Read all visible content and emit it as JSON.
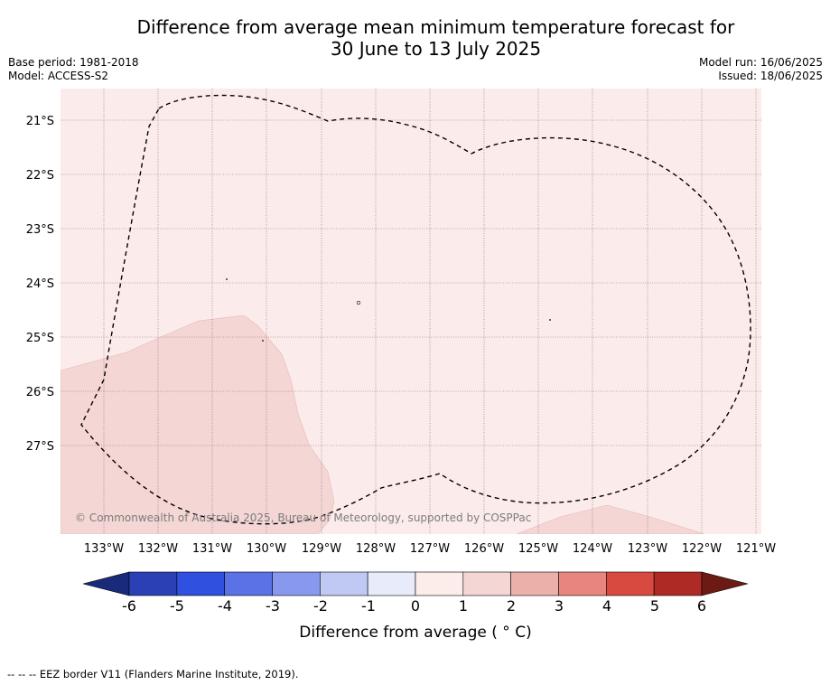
{
  "title_line1": "Difference from average mean minimum temperature forecast for",
  "title_line2": "30 June to 13 July 2025",
  "base_period": "Base period: 1981-2018",
  "model": "Model: ACCESS-S2",
  "model_run": "Model run: 16/06/2025",
  "issued": "Issued: 18/06/2025",
  "copyright": "© Commonwealth of Australia 2025, Bureau of Meteorology, supported by COSPPac",
  "lat_labels": [
    "21°S",
    "22°S",
    "23°S",
    "24°S",
    "25°S",
    "26°S",
    "27°S"
  ],
  "lon_labels": [
    "133°W",
    "132°W",
    "131°W",
    "130°W",
    "129°W",
    "128°W",
    "127°W",
    "126°W",
    "125°W",
    "124°W",
    "123°W",
    "122°W",
    "121°W"
  ],
  "colorbar": {
    "tick_labels": [
      "-6",
      "-5",
      "-4",
      "-3",
      "-2",
      "-1",
      "0",
      "1",
      "2",
      "3",
      "4",
      "5",
      "6"
    ],
    "label": "Difference from average ( ° C)",
    "colors": [
      "#1a2a7a",
      "#2a40b4",
      "#3050e0",
      "#5a72e6",
      "#8898ee",
      "#c0c8f4",
      "#e8ecfa",
      "#fcecea",
      "#f4d6d4",
      "#ecb0aa",
      "#e6867e",
      "#d84a40",
      "#ae2a24",
      "#6e1a14"
    ]
  },
  "map_colors": {
    "background_class": "#fbeceb",
    "region_class": "#f4d6d5",
    "eez_border": "#000000"
  },
  "legend_note": "--  --  -- EEZ border V11 (Flanders Marine Institute, 2019)."
}
